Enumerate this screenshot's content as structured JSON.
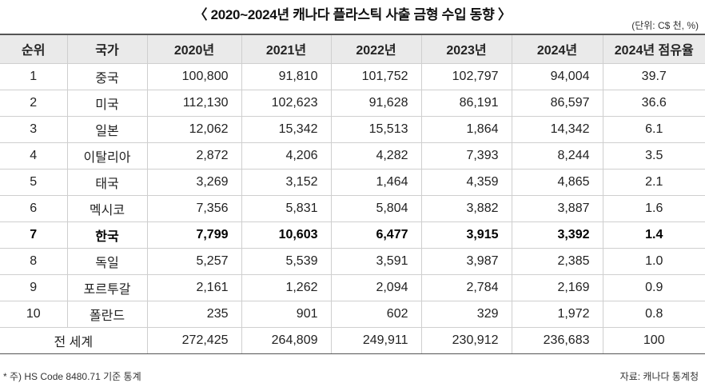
{
  "title": "〈 2020~2024년 캐나다 플라스틱 사출 금형 수입 동향 〉",
  "unit": "(단위: C$ 천, %)",
  "headers": [
    "순위",
    "국가",
    "2020년",
    "2021년",
    "2022년",
    "2023년",
    "2024년",
    "2024년 점유율"
  ],
  "rows": [
    {
      "rank": "1",
      "country": "중국",
      "y2020": "100,800",
      "y2021": "91,810",
      "y2022": "101,752",
      "y2023": "102,797",
      "y2024": "94,004",
      "share": "39.7"
    },
    {
      "rank": "2",
      "country": "미국",
      "y2020": "112,130",
      "y2021": "102,623",
      "y2022": "91,628",
      "y2023": "86,191",
      "y2024": "86,597",
      "share": "36.6"
    },
    {
      "rank": "3",
      "country": "일본",
      "y2020": "12,062",
      "y2021": "15,342",
      "y2022": "15,513",
      "y2023": "1,864",
      "y2024": "14,342",
      "share": "6.1"
    },
    {
      "rank": "4",
      "country": "이탈리아",
      "y2020": "2,872",
      "y2021": "4,206",
      "y2022": "4,282",
      "y2023": "7,393",
      "y2024": "8,244",
      "share": "3.5"
    },
    {
      "rank": "5",
      "country": "태국",
      "y2020": "3,269",
      "y2021": "3,152",
      "y2022": "1,464",
      "y2023": "4,359",
      "y2024": "4,865",
      "share": "2.1"
    },
    {
      "rank": "6",
      "country": "멕시코",
      "y2020": "7,356",
      "y2021": "5,831",
      "y2022": "5,804",
      "y2023": "3,882",
      "y2024": "3,887",
      "share": "1.6"
    },
    {
      "rank": "7",
      "country": "한국",
      "y2020": "7,799",
      "y2021": "10,603",
      "y2022": "6,477",
      "y2023": "3,915",
      "y2024": "3,392",
      "share": "1.4"
    },
    {
      "rank": "8",
      "country": "독일",
      "y2020": "5,257",
      "y2021": "5,539",
      "y2022": "3,591",
      "y2023": "3,987",
      "y2024": "2,385",
      "share": "1.0"
    },
    {
      "rank": "9",
      "country": "포르투갈",
      "y2020": "2,161",
      "y2021": "1,262",
      "y2022": "2,094",
      "y2023": "2,784",
      "y2024": "2,169",
      "share": "0.9"
    },
    {
      "rank": "10",
      "country": "폴란드",
      "y2020": "235",
      "y2021": "901",
      "y2022": "602",
      "y2023": "329",
      "y2024": "1,972",
      "share": "0.8"
    }
  ],
  "total": {
    "label": "전 세계",
    "y2020": "272,425",
    "y2021": "264,809",
    "y2022": "249,911",
    "y2023": "230,912",
    "y2024": "236,683",
    "share": "100"
  },
  "footnote": "* 주) HS Code 8480.71 기준 통계",
  "source": "자료: 캐나다 통계청"
}
